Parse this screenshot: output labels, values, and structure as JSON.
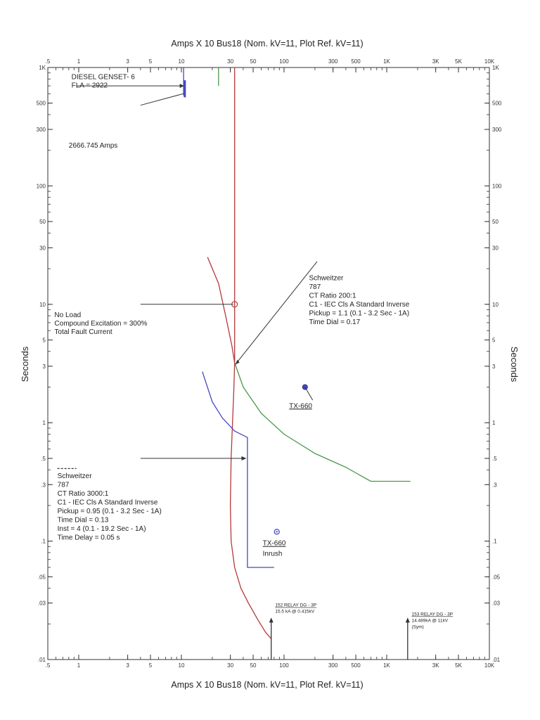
{
  "chart_data": {
    "type": "line",
    "title_top": "Amps  X  10   Bus18 (Nom. kV=11, Plot Ref. kV=11)",
    "title_bottom": "Amps  X  10   Bus18 (Nom. kV=11, Plot Ref. kV=11)",
    "ylabel_left": "Seconds",
    "ylabel_right": "Seconds",
    "x_scale": "log",
    "y_scale": "log",
    "xlim": [
      0.5,
      10000
    ],
    "ylim": [
      0.01,
      1000
    ],
    "x_ticks": [
      {
        "v": 0.5,
        "t": ".5"
      },
      {
        "v": 1,
        "t": "1"
      },
      {
        "v": 3,
        "t": "3"
      },
      {
        "v": 5,
        "t": "5"
      },
      {
        "v": 10,
        "t": "10"
      },
      {
        "v": 30,
        "t": "30"
      },
      {
        "v": 50,
        "t": "50"
      },
      {
        "v": 100,
        "t": "100"
      },
      {
        "v": 300,
        "t": "300"
      },
      {
        "v": 500,
        "t": "500"
      },
      {
        "v": 1000,
        "t": "1K"
      },
      {
        "v": 3000,
        "t": "3K"
      },
      {
        "v": 5000,
        "t": "5K"
      },
      {
        "v": 10000,
        "t": "10K"
      }
    ],
    "y_ticks": [
      {
        "v": 1000,
        "t": "1K"
      },
      {
        "v": 500,
        "t": "500"
      },
      {
        "v": 300,
        "t": "300"
      },
      {
        "v": 100,
        "t": "100"
      },
      {
        "v": 50,
        "t": "50"
      },
      {
        "v": 30,
        "t": "30"
      },
      {
        "v": 10,
        "t": "10"
      },
      {
        "v": 5,
        "t": "5"
      },
      {
        "v": 3,
        "t": "3"
      },
      {
        "v": 1,
        "t": "1"
      },
      {
        "v": 0.5,
        "t": ".5"
      },
      {
        "v": 0.3,
        "t": ".3"
      },
      {
        "v": 0.1,
        "t": ".1"
      },
      {
        "v": 0.05,
        "t": ".05"
      },
      {
        "v": 0.03,
        "t": ".03"
      },
      {
        "v": 0.01,
        "t": ".01"
      }
    ],
    "series": [
      {
        "color": "#b5383a",
        "points": [
          [
            33,
            1000
          ],
          [
            33,
            10
          ],
          [
            33,
            3.2
          ],
          [
            32.5,
            2
          ],
          [
            31.5,
            1
          ],
          [
            30.5,
            0.5
          ],
          [
            30,
            0.2
          ],
          [
            30.5,
            0.1
          ],
          [
            33,
            0.06
          ],
          [
            38,
            0.04
          ],
          [
            45,
            0.03
          ],
          [
            55,
            0.022
          ],
          [
            66,
            0.017
          ],
          [
            75,
            0.015
          ]
        ]
      },
      {
        "color": "#b5383a",
        "points": [
          [
            18,
            25
          ],
          [
            23,
            15
          ],
          [
            27,
            8
          ],
          [
            31,
            4.5
          ],
          [
            33,
            3.2
          ]
        ]
      },
      {
        "color": "#4a9a4a",
        "points": [
          [
            33,
            3.2
          ],
          [
            40,
            2
          ],
          [
            60,
            1.2
          ],
          [
            100,
            0.8
          ],
          [
            200,
            0.55
          ],
          [
            400,
            0.42
          ],
          [
            700,
            0.32
          ],
          [
            1700,
            0.32
          ]
        ]
      },
      {
        "color": "#4a9a4a",
        "points": [
          [
            23,
            1000
          ],
          [
            23,
            700
          ]
        ]
      },
      {
        "color": "#4848c0",
        "points": [
          [
            16,
            2.7
          ],
          [
            20,
            1.5
          ],
          [
            25,
            1.1
          ],
          [
            33,
            0.85
          ],
          [
            44,
            0.75
          ],
          [
            44,
            0.06
          ],
          [
            80,
            0.06
          ]
        ]
      },
      {
        "color": "#4848c0",
        "points": [
          [
            10.5,
            1000
          ],
          [
            10.5,
            580
          ]
        ]
      }
    ],
    "annotations": [
      {
        "id": "diesel_label",
        "lines": [
          "DIESEL GENSET- 6",
          "FLA = 2922"
        ]
      },
      {
        "id": "amps_2666",
        "lines": [
          "2666.745 Amps"
        ]
      },
      {
        "id": "no_load",
        "lines": [
          "No Load",
          "Compound Excitation = 300%",
          "Total Fault Current"
        ]
      },
      {
        "id": "relay_787_200",
        "lines": [
          "Schweitzer",
          "787",
          "CT Ratio 200:1",
          "C1 - IEC Cls A Standard Inverse",
          "Pickup = 1.1 (0.1 - 3.2 Sec - 1A)",
          "Time Dial = 0.17"
        ]
      },
      {
        "id": "relay_787_3000",
        "lines": [
          "Schweitzer",
          "787",
          "CT Ratio 3000:1",
          "C1 - IEC Cls A Standard Inverse",
          "Pickup = 0.95 (0.1 - 3.2 Sec - 1A)",
          "Time Dial = 0.13",
          "Inst = 4 (0.1 - 19.2 Sec - 1A)",
          "Time Delay = 0.05 s"
        ]
      },
      {
        "id": "tx660",
        "lines": [
          "TX-660"
        ]
      },
      {
        "id": "tx660_inrush",
        "lines": [
          "TX-660",
          "Inrush"
        ]
      },
      {
        "id": "relay_152",
        "lines": [
          "152 RELAY DG - 3P",
          "15.5 kA @ 0.415kV"
        ]
      },
      {
        "id": "relay_153",
        "lines": [
          "153 RELAY DG - 3P",
          "14.489kA @ 11kV",
          "(Sym)"
        ]
      }
    ]
  }
}
